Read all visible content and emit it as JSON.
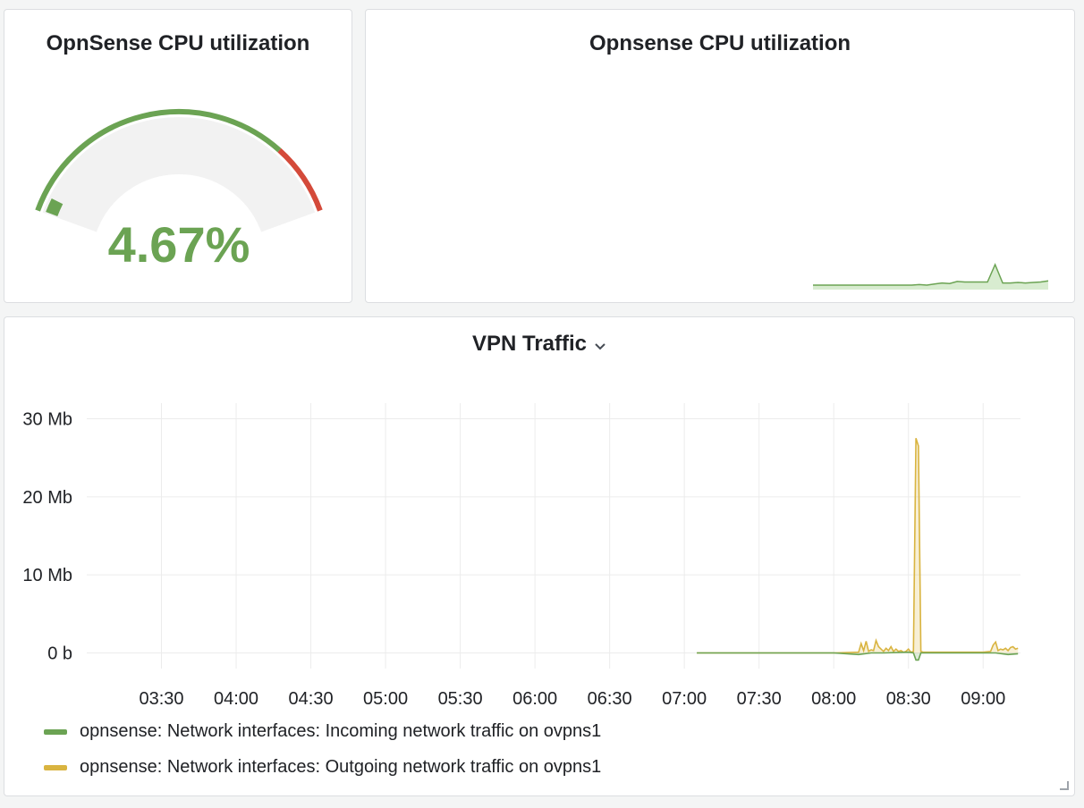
{
  "gauge_panel": {
    "title": "OpnSense CPU utilization",
    "value": 4.67,
    "value_text": "4.67%",
    "min": 0,
    "max": 100,
    "threshold": 80,
    "colors": {
      "ok": "#6ba353",
      "critical": "#d44a3a",
      "track": "#f2f2f2"
    }
  },
  "sparkline_panel": {
    "title": "Opnsense CPU utilization",
    "color": "#6ba353",
    "fill": "#d8ecd0",
    "values": [
      4.6,
      4.6,
      4.6,
      4.6,
      4.6,
      4.6,
      4.6,
      4.6,
      4.6,
      4.6,
      4.6,
      4.6,
      4.6,
      4.6,
      4.7,
      4.6,
      4.8,
      5.0,
      4.9,
      5.3,
      5.2,
      5.2,
      5.2,
      5.2,
      8.5,
      5.0,
      5.0,
      5.1,
      5.0,
      5.1,
      5.2,
      5.4
    ]
  },
  "vpn_panel": {
    "title": "VPN Traffic",
    "chart_data": {
      "type": "line",
      "title": "VPN Traffic",
      "y_ticks": [
        {
          "value": 0,
          "label": "0 b"
        },
        {
          "value": 10,
          "label": "10 Mb"
        },
        {
          "value": 20,
          "label": "20 Mb"
        },
        {
          "value": 30,
          "label": "30 Mb"
        }
      ],
      "ylim": [
        -2,
        32
      ],
      "xlim": [
        "03:00",
        "09:15"
      ],
      "x_ticks": [
        "03:30",
        "04:00",
        "04:30",
        "05:00",
        "05:30",
        "06:00",
        "06:30",
        "07:00",
        "07:30",
        "08:00",
        "08:30",
        "09:00"
      ],
      "grid": true,
      "legend_position": "bottom-left",
      "series": [
        {
          "name": "opnsense: Network interfaces: Incoming network traffic on ovpns1",
          "color": "#6ba353",
          "x": [
            "07:05",
            "07:30",
            "08:00",
            "08:10",
            "08:15",
            "08:20",
            "08:30",
            "08:32",
            "08:33",
            "08:34",
            "08:35",
            "08:40",
            "08:50",
            "09:00",
            "09:05",
            "09:10",
            "09:14"
          ],
          "y": [
            0,
            0,
            0,
            -0.2,
            0,
            0,
            0.1,
            0,
            -0.9,
            -0.9,
            0,
            0,
            0,
            0,
            0,
            -0.2,
            -0.1
          ]
        },
        {
          "name": "opnsense: Network interfaces: Outgoing network traffic on ovpns1",
          "color": "#d9b440",
          "x": [
            "07:05",
            "07:30",
            "08:00",
            "08:10",
            "08:11",
            "08:12",
            "08:13",
            "08:14",
            "08:15",
            "08:16",
            "08:17",
            "08:18",
            "08:19",
            "08:20",
            "08:21",
            "08:22",
            "08:23",
            "08:24",
            "08:25",
            "08:26",
            "08:27",
            "08:28",
            "08:29",
            "08:30",
            "08:31",
            "08:32",
            "08:33",
            "08:34",
            "08:35",
            "08:36",
            "08:40",
            "08:50",
            "09:00",
            "09:03",
            "09:04",
            "09:05",
            "09:06",
            "09:07",
            "09:08",
            "09:09",
            "09:10",
            "09:11",
            "09:12",
            "09:13",
            "09:14"
          ],
          "y": [
            0,
            0,
            0,
            0.1,
            1.2,
            0.3,
            1.5,
            0.2,
            0.4,
            0.3,
            1.6,
            0.8,
            0.5,
            0.2,
            0.6,
            0.3,
            0.8,
            0.2,
            0.5,
            0.2,
            0.3,
            0.1,
            0.2,
            0.5,
            0.1,
            0.2,
            27.5,
            26.5,
            0.2,
            0.1,
            0.1,
            0.1,
            0.1,
            0.2,
            1.0,
            1.4,
            0.3,
            0.5,
            0.4,
            0.6,
            0.3,
            0.7,
            0.8,
            0.5,
            0.6
          ]
        }
      ]
    }
  }
}
